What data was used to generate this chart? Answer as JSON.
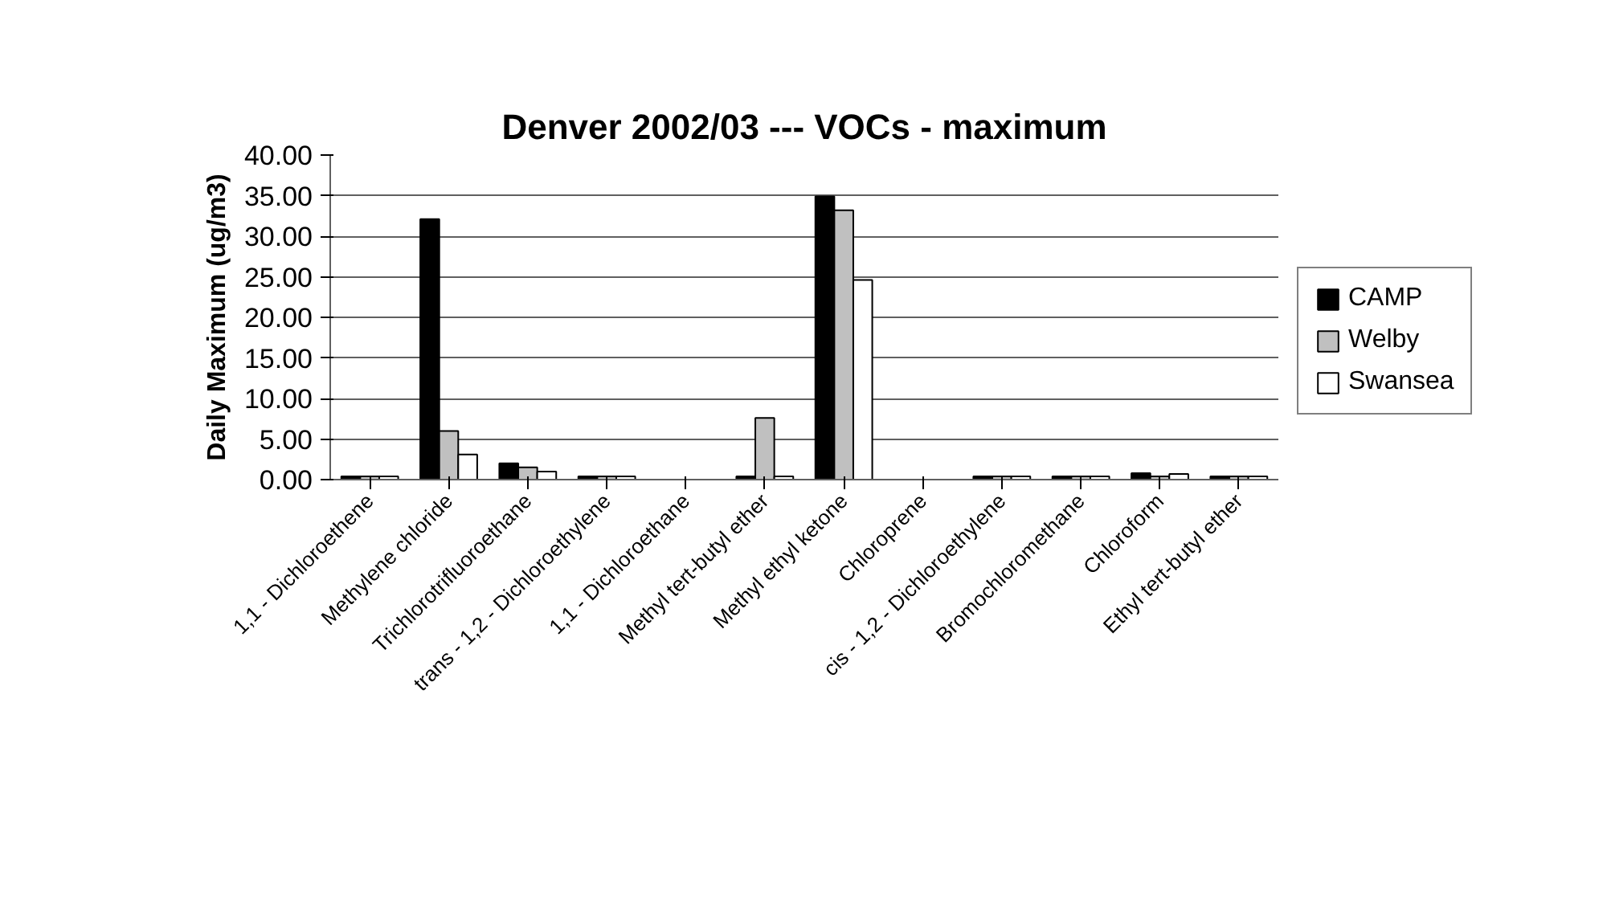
{
  "chart_data": {
    "type": "bar",
    "title": "Denver 2002/03 --- VOCs - maximum",
    "ylabel": "Daily Maximum (ug/m3)",
    "categories": [
      "1,1 - Dichloroethene",
      "Methylene chloride",
      "Trichlorotrifluoroethane",
      "trans - 1,2 - Dichloroethylene",
      "1,1 - Dichloroethane",
      "Methyl tert-butyl ether",
      "Methyl ethyl ketone",
      "Chloroprene",
      "cis - 1,2 - Dichloroethylene",
      "Bromochloromethane",
      "Chloroform",
      "Ethyl tert-butyl ether"
    ],
    "series": [
      {
        "name": "CAMP",
        "color": "#000000",
        "values": [
          0.4,
          32.1,
          2.0,
          0.4,
          null,
          0.4,
          34.9,
          null,
          0.4,
          0.4,
          0.8,
          0.4
        ]
      },
      {
        "name": "Welby",
        "color": "#c0c0c0",
        "values": [
          0.4,
          6.0,
          1.5,
          0.4,
          null,
          7.6,
          33.2,
          null,
          0.4,
          0.4,
          0.4,
          0.4
        ]
      },
      {
        "name": "Swansea",
        "color": "#ffffff",
        "values": [
          0.4,
          3.1,
          1.0,
          0.4,
          null,
          0.4,
          24.6,
          null,
          0.4,
          0.4,
          0.7,
          0.4
        ]
      }
    ],
    "ylim": [
      0,
      40
    ],
    "yticks": [
      {
        "value": 0,
        "label": "0.00"
      },
      {
        "value": 5,
        "label": "5.00"
      },
      {
        "value": 10,
        "label": "10.00"
      },
      {
        "value": 15,
        "label": "15.00"
      },
      {
        "value": 20,
        "label": "20.00"
      },
      {
        "value": 25,
        "label": "25.00"
      },
      {
        "value": 30,
        "label": "30.00"
      },
      {
        "value": 35,
        "label": "35.00"
      },
      {
        "value": 40,
        "label": "40.00"
      }
    ],
    "grid": "y",
    "legend": "right"
  }
}
